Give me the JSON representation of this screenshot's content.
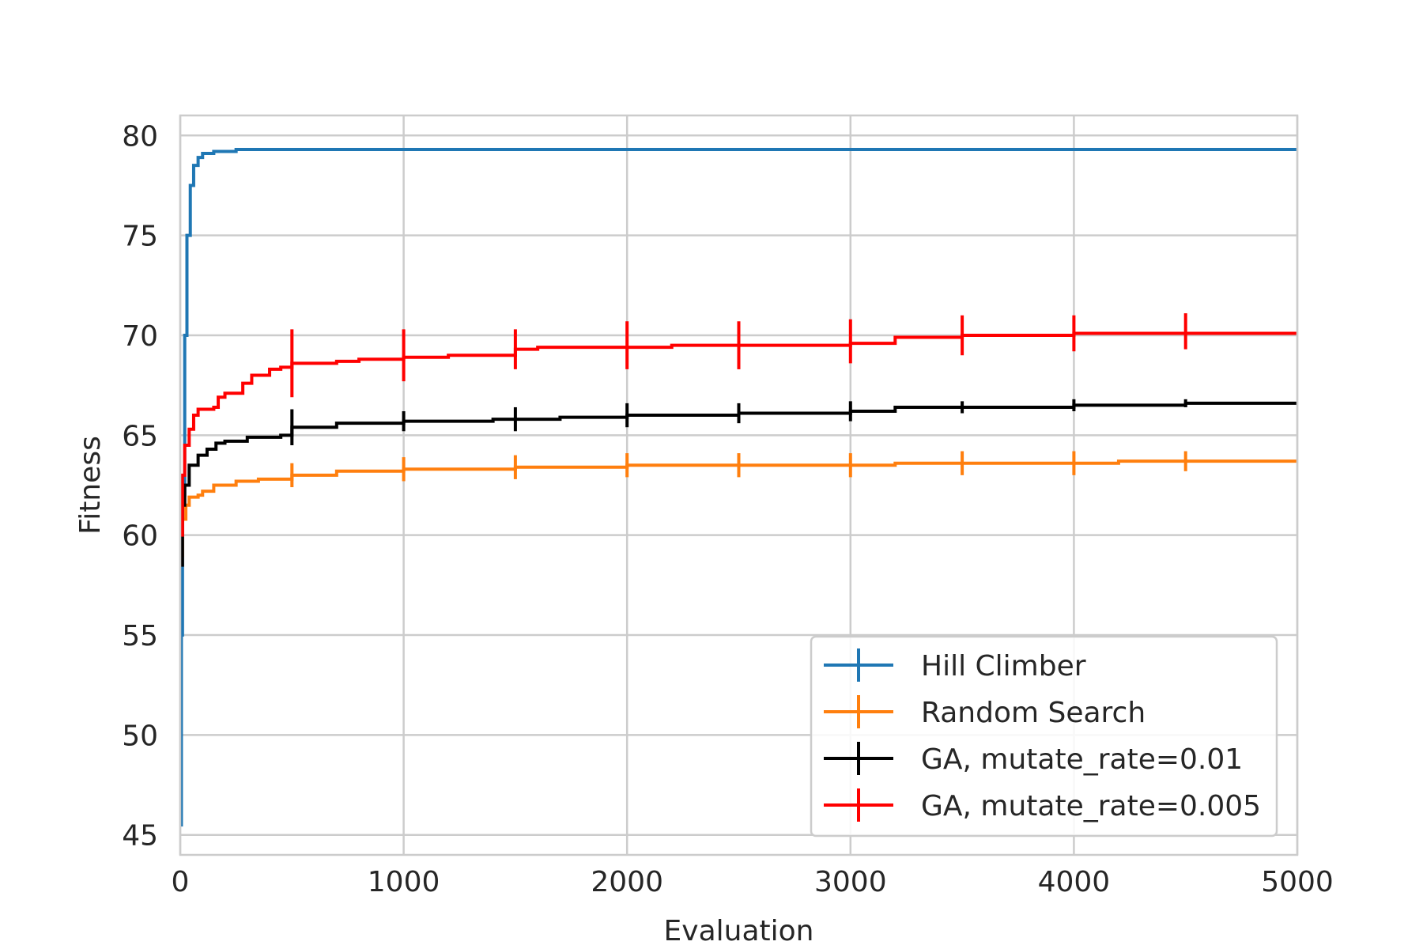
{
  "chart_data": {
    "type": "line",
    "title": "",
    "xlabel": "Evaluation",
    "ylabel": "Fitness",
    "xlim": [
      0,
      5000
    ],
    "ylim": [
      44,
      81
    ],
    "x_ticks": [
      0,
      1000,
      2000,
      3000,
      4000,
      5000
    ],
    "y_ticks": [
      45,
      50,
      55,
      60,
      65,
      70,
      75,
      80
    ],
    "grid": true,
    "legend_position": "lower-right",
    "series": [
      {
        "name": "Hill Climber",
        "color": "#1f77b4",
        "points": [
          [
            0,
            45.5
          ],
          [
            5,
            55
          ],
          [
            10,
            62
          ],
          [
            20,
            70
          ],
          [
            30,
            75
          ],
          [
            45,
            77.5
          ],
          [
            60,
            78.5
          ],
          [
            80,
            78.9
          ],
          [
            100,
            79.1
          ],
          [
            150,
            79.2
          ],
          [
            250,
            79.3
          ],
          [
            5000,
            79.3
          ]
        ],
        "errorbars": []
      },
      {
        "name": "Random Search",
        "color": "#ff7f0e",
        "points": [
          [
            0,
            59
          ],
          [
            10,
            60.8
          ],
          [
            25,
            61.5
          ],
          [
            40,
            61.9
          ],
          [
            80,
            62.0
          ],
          [
            100,
            62.2
          ],
          [
            150,
            62.5
          ],
          [
            250,
            62.7
          ],
          [
            350,
            62.8
          ],
          [
            500,
            63.0
          ],
          [
            700,
            63.2
          ],
          [
            1000,
            63.3
          ],
          [
            1500,
            63.4
          ],
          [
            2000,
            63.5
          ],
          [
            2500,
            63.5
          ],
          [
            3000,
            63.5
          ],
          [
            3200,
            63.6
          ],
          [
            4200,
            63.7
          ],
          [
            5000,
            63.7
          ]
        ],
        "errorbars": [
          [
            500,
            63.0,
            0.6
          ],
          [
            1000,
            63.3,
            0.6
          ],
          [
            1500,
            63.4,
            0.6
          ],
          [
            2000,
            63.5,
            0.6
          ],
          [
            2500,
            63.5,
            0.6
          ],
          [
            3000,
            63.5,
            0.6
          ],
          [
            3500,
            63.6,
            0.6
          ],
          [
            4000,
            63.6,
            0.6
          ],
          [
            4500,
            63.7,
            0.5
          ]
        ]
      },
      {
        "name": "GA, mutate_rate=0.01",
        "color": "#000000",
        "points": [
          [
            0,
            58.5
          ],
          [
            10,
            61.5
          ],
          [
            20,
            62.5
          ],
          [
            40,
            63.5
          ],
          [
            80,
            64.0
          ],
          [
            120,
            64.3
          ],
          [
            160,
            64.6
          ],
          [
            200,
            64.7
          ],
          [
            300,
            64.9
          ],
          [
            450,
            65.0
          ],
          [
            500,
            65.4
          ],
          [
            700,
            65.6
          ],
          [
            1000,
            65.7
          ],
          [
            1200,
            65.7
          ],
          [
            1400,
            65.8
          ],
          [
            1700,
            65.9
          ],
          [
            2000,
            66.0
          ],
          [
            2500,
            66.1
          ],
          [
            3000,
            66.2
          ],
          [
            3200,
            66.4
          ],
          [
            3500,
            66.4
          ],
          [
            4000,
            66.5
          ],
          [
            4500,
            66.6
          ],
          [
            5000,
            66.6
          ]
        ],
        "errorbars": [
          [
            500,
            65.4,
            0.9
          ],
          [
            1000,
            65.7,
            0.5
          ],
          [
            1500,
            65.8,
            0.6
          ],
          [
            2000,
            66.0,
            0.6
          ],
          [
            2500,
            66.1,
            0.5
          ],
          [
            3000,
            66.2,
            0.5
          ],
          [
            3500,
            66.4,
            0.3
          ],
          [
            4000,
            66.5,
            0.3
          ],
          [
            4500,
            66.6,
            0.2
          ]
        ]
      },
      {
        "name": "GA, mutate_rate=0.005",
        "color": "#ff0000",
        "points": [
          [
            0,
            60
          ],
          [
            10,
            63
          ],
          [
            20,
            64.5
          ],
          [
            40,
            65.3
          ],
          [
            60,
            66.0
          ],
          [
            80,
            66.3
          ],
          [
            150,
            66.4
          ],
          [
            170,
            66.9
          ],
          [
            200,
            67.1
          ],
          [
            280,
            67.6
          ],
          [
            320,
            68.0
          ],
          [
            400,
            68.3
          ],
          [
            450,
            68.4
          ],
          [
            500,
            68.6
          ],
          [
            700,
            68.7
          ],
          [
            800,
            68.8
          ],
          [
            1000,
            68.9
          ],
          [
            1200,
            69.0
          ],
          [
            1400,
            69.0
          ],
          [
            1500,
            69.3
          ],
          [
            1600,
            69.4
          ],
          [
            2000,
            69.4
          ],
          [
            2200,
            69.5
          ],
          [
            3000,
            69.6
          ],
          [
            3200,
            69.9
          ],
          [
            3500,
            70.0
          ],
          [
            4000,
            70.1
          ],
          [
            4500,
            70.1
          ],
          [
            5000,
            70.1
          ]
        ],
        "errorbars": [
          [
            500,
            68.6,
            1.7
          ],
          [
            1000,
            69.0,
            1.3
          ],
          [
            1500,
            69.3,
            1.0
          ],
          [
            2000,
            69.5,
            1.2
          ],
          [
            2500,
            69.5,
            1.2
          ],
          [
            3000,
            69.7,
            1.1
          ],
          [
            3500,
            70.0,
            1.0
          ],
          [
            4000,
            70.1,
            0.9
          ],
          [
            4500,
            70.2,
            0.9
          ]
        ]
      }
    ]
  }
}
